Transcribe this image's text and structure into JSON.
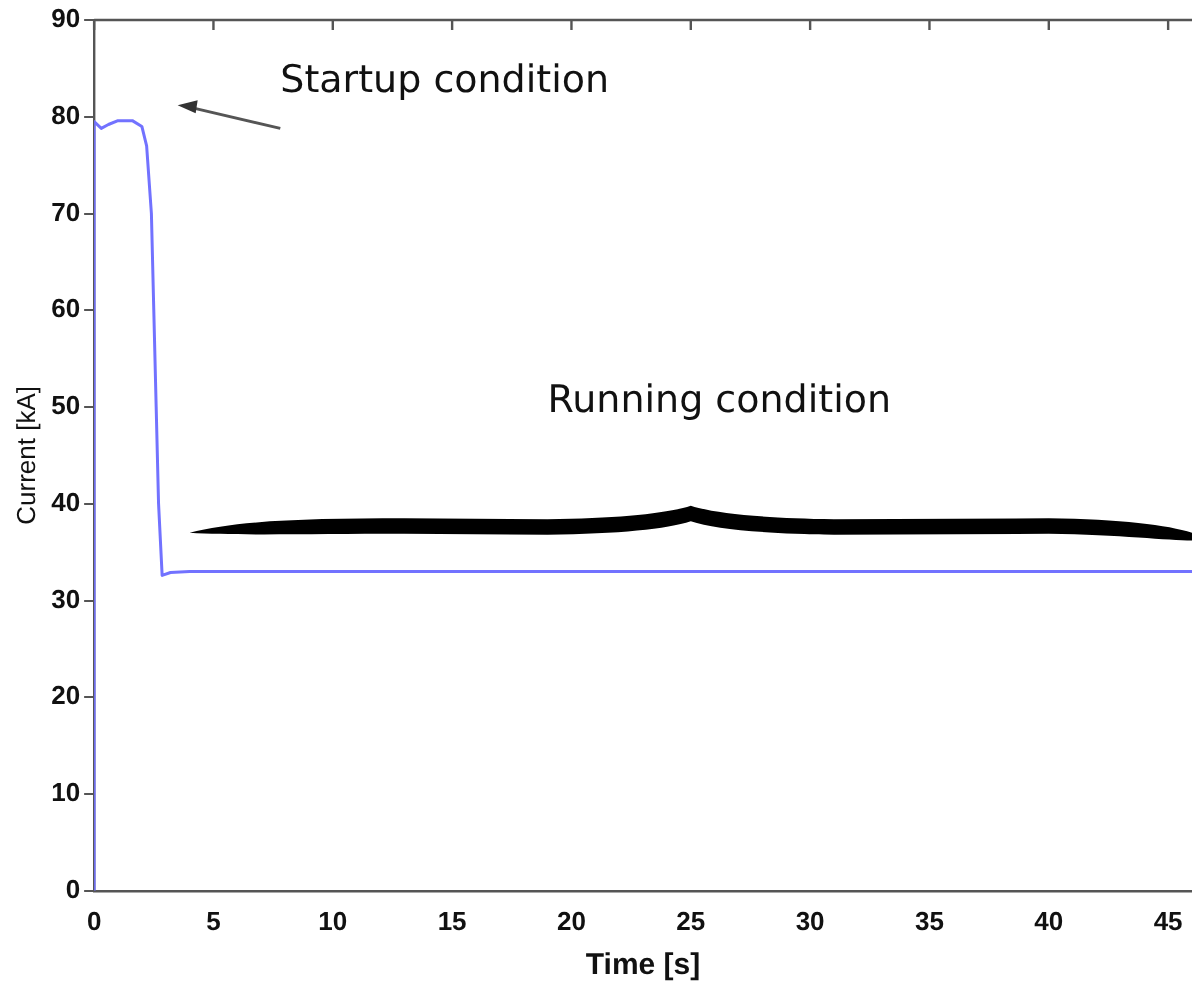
{
  "chart_data": {
    "type": "line",
    "xlabel": "Time [s]",
    "ylabel": "Current [kA]",
    "x": [
      0,
      0,
      0.3,
      0.6,
      1,
      1.6,
      2,
      2.2,
      2.4,
      2.5,
      2.6,
      2.7,
      2.85,
      3.2,
      4,
      46
    ],
    "series": [
      {
        "color": "#7272ff",
        "values": [
          0,
          79.5,
          78.8,
          79.2,
          79.6,
          79.6,
          79,
          77,
          70,
          60,
          50,
          40,
          32.6,
          32.9,
          33,
          33
        ]
      }
    ],
    "xlim": [
      0,
      46
    ],
    "xticks": [
      0,
      5,
      10,
      15,
      20,
      25,
      30,
      35,
      40,
      45
    ],
    "ylim": [
      0,
      90
    ],
    "yticks": [
      0,
      10,
      20,
      30,
      40,
      50,
      60,
      70,
      80,
      90
    ],
    "grid": false,
    "legend": false,
    "marker": "none",
    "line_style": "solid",
    "annotations": [
      "Startup condition",
      "Running condition"
    ]
  }
}
